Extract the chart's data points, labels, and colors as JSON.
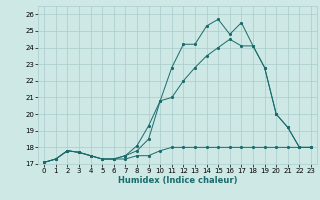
{
  "xlabel": "Humidex (Indice chaleur)",
  "xlim": [
    -0.5,
    23.5
  ],
  "ylim": [
    17.0,
    26.5
  ],
  "yticks": [
    17,
    18,
    19,
    20,
    21,
    22,
    23,
    24,
    25,
    26
  ],
  "xticks": [
    0,
    1,
    2,
    3,
    4,
    5,
    6,
    7,
    8,
    9,
    10,
    11,
    12,
    13,
    14,
    15,
    16,
    17,
    18,
    19,
    20,
    21,
    22,
    23
  ],
  "background_color": "#cde8e5",
  "grid_color": "#a8ccca",
  "line_color": "#1a6b6b",
  "line1_y": [
    17.1,
    17.3,
    17.8,
    17.7,
    17.5,
    17.3,
    17.3,
    17.3,
    17.5,
    17.5,
    17.8,
    18.0,
    18.0,
    18.0,
    18.0,
    18.0,
    18.0,
    18.0,
    18.0,
    18.0,
    18.0,
    18.0,
    18.0,
    18.0
  ],
  "line2_y": [
    17.1,
    17.3,
    17.8,
    17.7,
    17.5,
    17.3,
    17.3,
    17.5,
    17.8,
    18.5,
    20.8,
    21.0,
    22.0,
    22.8,
    23.5,
    24.0,
    24.5,
    24.1,
    24.1,
    22.8,
    20.0,
    19.2,
    18.0,
    18.0
  ],
  "line3_y": [
    17.1,
    17.3,
    17.8,
    17.7,
    17.5,
    17.3,
    17.3,
    17.5,
    18.1,
    19.3,
    20.8,
    22.8,
    24.2,
    24.2,
    25.3,
    25.7,
    24.8,
    25.5,
    24.1,
    22.8,
    20.0,
    19.2,
    18.0,
    18.0
  ]
}
